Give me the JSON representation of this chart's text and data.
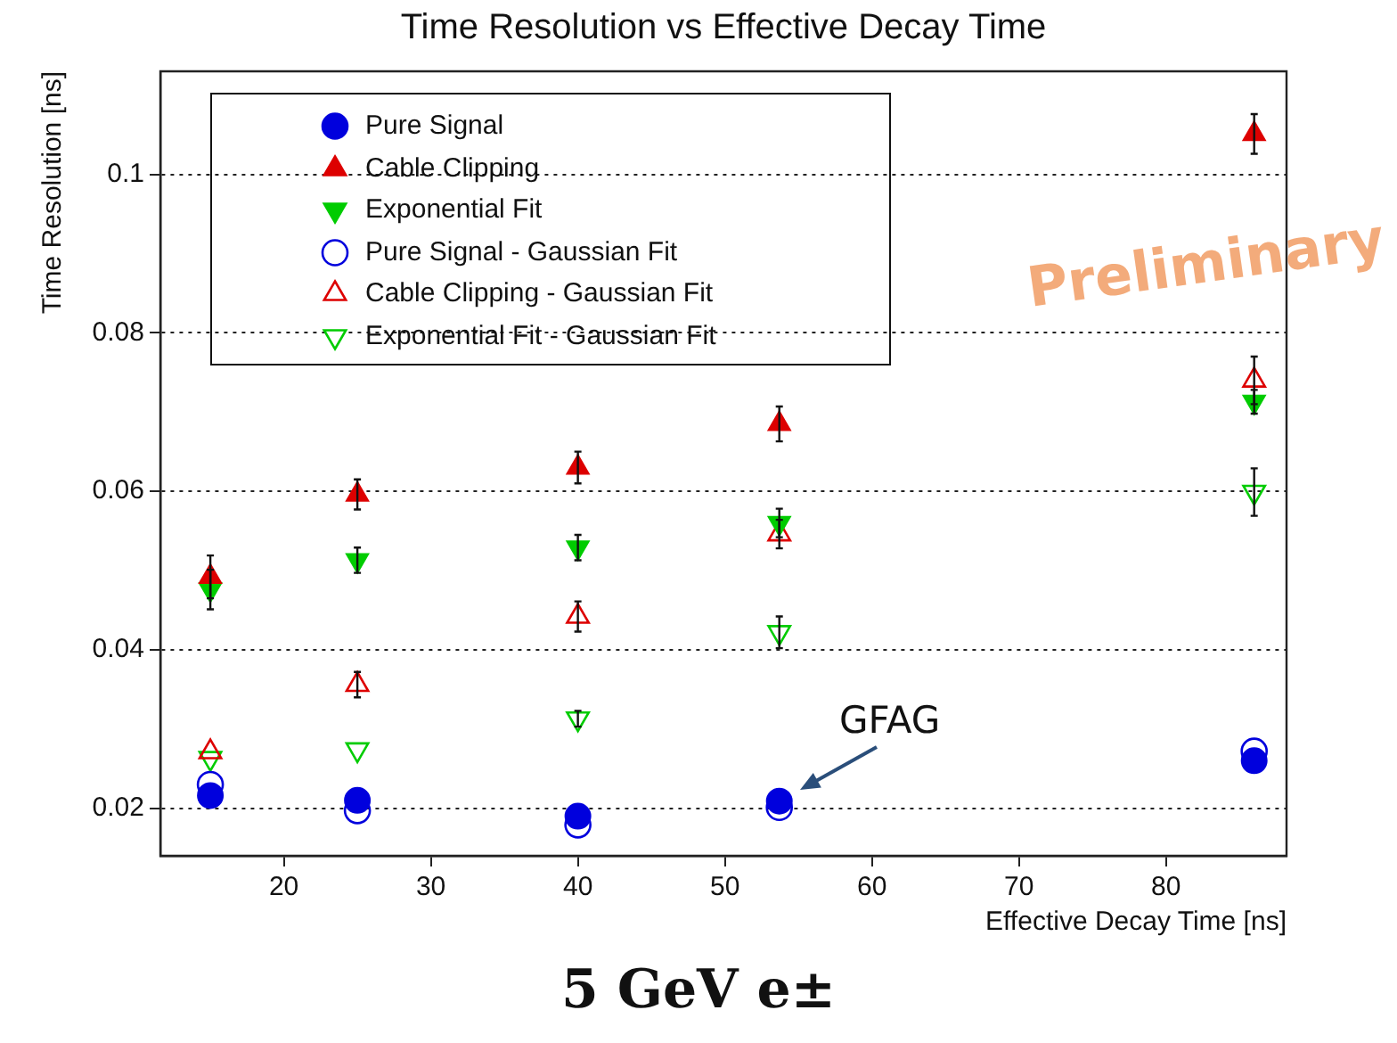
{
  "chart_data": {
    "type": "scatter",
    "title": "Time Resolution vs Effective Decay Time",
    "xlabel": "Effective Decay Time [ns]",
    "ylabel": "Time Resolution [ns]",
    "x": [
      15,
      25,
      40,
      53.7,
      86
    ],
    "series": [
      {
        "name": "Pure Signal",
        "color": "#0000dd",
        "marker": "circle",
        "values": [
          0.0216,
          0.021,
          0.019,
          0.0209,
          0.026
        ]
      },
      {
        "name": "Cable Clipping",
        "color": "#dd0000",
        "marker": "triangle",
        "values": [
          0.0492,
          0.0596,
          0.063,
          0.0685,
          0.1051
        ],
        "errors": [
          0.0027,
          0.0019,
          0.002,
          0.0022,
          0.0025
        ]
      },
      {
        "name": "Exponential Fit",
        "color": "#00cc00",
        "marker": "triangle-down",
        "values": [
          0.0476,
          0.0513,
          0.0529,
          0.056,
          0.0713
        ],
        "errors": [
          0.0025,
          0.0016,
          0.0016,
          0.0018,
          0.0015
        ]
      },
      {
        "name": "Pure Signal - Gaussian Fit",
        "color": "#0000dd",
        "marker": "circle-open",
        "values": [
          0.023,
          0.0197,
          0.0179,
          0.0201,
          0.0272
        ]
      },
      {
        "name": "Cable Clipping - Gaussian Fit",
        "color": "#dd0000",
        "marker": "triangle-open",
        "values": [
          0.0271,
          0.0356,
          0.0442,
          0.0546,
          0.074
        ],
        "errors": [
          null,
          0.0016,
          0.0019,
          0.0018,
          0.003
        ]
      },
      {
        "name": "Exponential Fit - Gaussian Fit",
        "color": "#00cc00",
        "marker": "triangle-down-open",
        "values": [
          0.0263,
          0.0274,
          0.0313,
          0.0422,
          0.0599
        ],
        "errors": [
          null,
          null,
          0.001,
          0.002,
          0.003
        ]
      }
    ],
    "xlim": [
      11.6,
      88.2
    ],
    "xticks": [
      20,
      30,
      40,
      50,
      60,
      70,
      80
    ],
    "ylim": [
      0.014,
      0.113
    ],
    "yticks": [
      0.02,
      0.04,
      0.06,
      0.08,
      0.1
    ],
    "grid": "y",
    "legend": "top left",
    "annotations": [
      "Preliminary",
      {
        "text": "GFAG",
        "x": 53.7,
        "y": 0.0209
      },
      "5 GeV e±"
    ]
  }
}
